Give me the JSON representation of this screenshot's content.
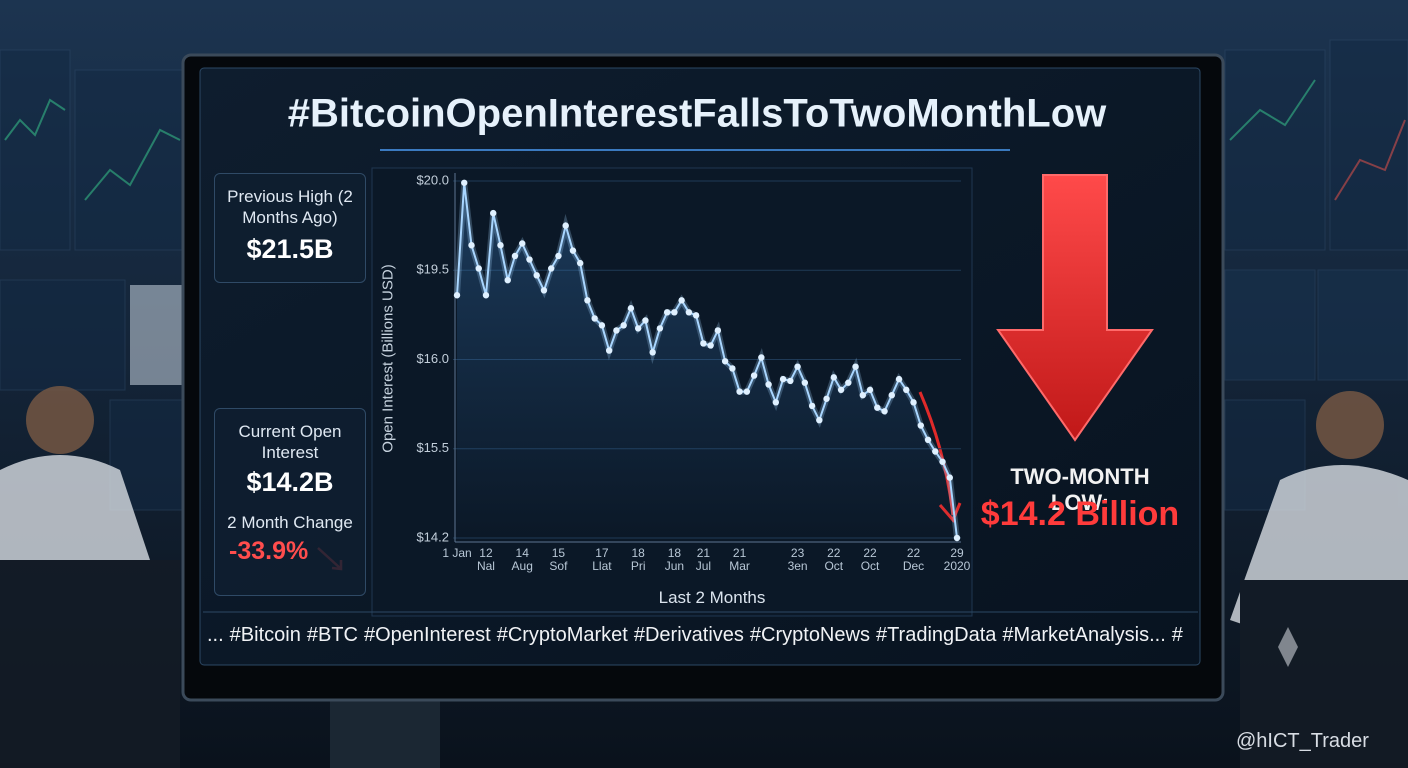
{
  "header": {
    "title": "#BitcoinOpenInterestFallsToTwoMonthLow"
  },
  "panels": [
    {
      "label": "Previous High (2 Months Ago)",
      "value": "$21.5B"
    },
    {
      "label": "Current Open Interest",
      "value": "$14.2B",
      "change_label": "2 Month Change",
      "change": "-33.9%"
    }
  ],
  "chart_data": {
    "type": "line",
    "y_label": "Open Interest (Billions USD)",
    "x_label": "Last 2 Months",
    "categories": [
      "1 Jan",
      null,
      null,
      null,
      "12 Nal",
      null,
      null,
      null,
      null,
      "14 Aug",
      null,
      null,
      null,
      null,
      "15 Sof",
      null,
      null,
      null,
      null,
      null,
      "17 Llat",
      null,
      null,
      null,
      null,
      "18 Pri",
      null,
      null,
      null,
      null,
      "18 Jun",
      null,
      null,
      null,
      "21 Jul",
      null,
      null,
      null,
      null,
      "21 Mar",
      null,
      null,
      null,
      null,
      null,
      null,
      null,
      "23 3en",
      null,
      null,
      null,
      null,
      "22 Oct",
      null,
      null,
      null,
      null,
      "22 Oct",
      null,
      null,
      null,
      null,
      null,
      "22 Dec",
      null,
      null,
      null,
      null,
      null,
      "29 2020"
    ],
    "values": [
      18.52,
      19.99,
      19.64,
      19.51,
      18.52,
      19.82,
      19.64,
      19.11,
      19.58,
      19.65,
      19.56,
      19.3,
      18.71,
      19.51,
      19.58,
      19.75,
      19.61,
      19.54,
      18.32,
      17.61,
      17.34,
      16.35,
      17.14,
      17.34,
      18.01,
      17.22,
      17.53,
      16.28,
      17.22,
      17.85,
      17.85,
      18.32,
      17.85,
      17.73,
      16.63,
      16.55,
      17.14,
      15.99,
      15.95,
      15.82,
      15.82,
      15.91,
      16.08,
      15.86,
      15.76,
      15.89,
      15.88,
      15.96,
      15.87,
      15.74,
      15.66,
      15.78,
      15.9,
      15.83,
      15.87,
      15.96,
      15.8,
      15.83,
      15.73,
      15.71,
      15.8,
      15.89,
      15.83,
      15.76,
      15.63,
      15.55,
      15.46,
      15.31,
      15.08,
      14.2
    ],
    "color": "#a9d6ff",
    "ylim": [
      14.2,
      20.0
    ],
    "yticks": [
      {
        "value": 14.2,
        "label": "$14.2"
      },
      {
        "value": 15.5,
        "label": "$15.5"
      },
      {
        "value": 16.0,
        "label": "$16.0"
      },
      {
        "value": 19.5,
        "label": "$19.5"
      },
      {
        "value": 20.0,
        "label": "$20.0"
      }
    ],
    "grid": true,
    "annotation": {
      "label": "TWO-MONTH LOW:",
      "value": "$14.2 Billion"
    }
  },
  "hashtags": [
    "...",
    "#Bitcoin",
    "#BTC",
    "#OpenInterest",
    "#CryptoMarket",
    "#Derivatives",
    "#CryptoNews",
    "#TradingData",
    "#MarketAnalysis...",
    "#"
  ],
  "watermark": "@hICT_Trader"
}
